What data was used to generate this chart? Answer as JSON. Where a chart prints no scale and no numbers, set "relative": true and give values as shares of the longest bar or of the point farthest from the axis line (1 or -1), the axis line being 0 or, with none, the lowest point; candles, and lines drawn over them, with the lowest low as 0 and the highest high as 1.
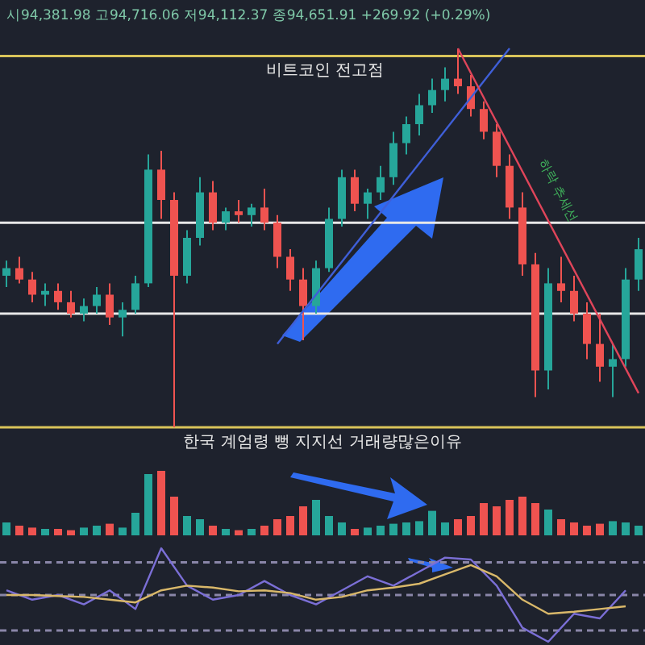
{
  "chart_data": [
    {
      "type": "candlestick",
      "relative": true,
      "categories": [
        null,
        null,
        null,
        null,
        null,
        null,
        null,
        null,
        null,
        null,
        null,
        null,
        null,
        null,
        null,
        null,
        null,
        null,
        null,
        null,
        null,
        null,
        null,
        null,
        null,
        null,
        null,
        null,
        null,
        null,
        null,
        null,
        null,
        null,
        null,
        null,
        null,
        null,
        null,
        null,
        null,
        null,
        null,
        null,
        null,
        null,
        null,
        null,
        null,
        null
      ],
      "ohlc": [
        [
          0.4,
          0.44,
          0.37,
          0.42
        ],
        [
          0.42,
          0.45,
          0.38,
          0.39
        ],
        [
          0.39,
          0.41,
          0.33,
          0.35
        ],
        [
          0.35,
          0.38,
          0.32,
          0.36
        ],
        [
          0.36,
          0.38,
          0.31,
          0.33
        ],
        [
          0.33,
          0.36,
          0.29,
          0.3
        ],
        [
          0.3,
          0.34,
          0.28,
          0.32
        ],
        [
          0.32,
          0.37,
          0.3,
          0.35
        ],
        [
          0.35,
          0.38,
          0.27,
          0.29
        ],
        [
          0.29,
          0.33,
          0.24,
          0.31
        ],
        [
          0.31,
          0.4,
          0.3,
          0.38
        ],
        [
          0.38,
          0.72,
          0.37,
          0.68
        ],
        [
          0.68,
          0.73,
          0.55,
          0.6
        ],
        [
          0.6,
          0.62,
          0.0,
          0.4
        ],
        [
          0.4,
          0.52,
          0.38,
          0.5
        ],
        [
          0.5,
          0.66,
          0.48,
          0.62
        ],
        [
          0.62,
          0.65,
          0.52,
          0.54
        ],
        [
          0.54,
          0.58,
          0.52,
          0.57
        ],
        [
          0.57,
          0.6,
          0.54,
          0.56
        ],
        [
          0.56,
          0.59,
          0.53,
          0.58
        ],
        [
          0.58,
          0.63,
          0.52,
          0.54
        ],
        [
          0.54,
          0.56,
          0.42,
          0.45
        ],
        [
          0.45,
          0.47,
          0.36,
          0.39
        ],
        [
          0.39,
          0.42,
          0.23,
          0.32
        ],
        [
          0.32,
          0.44,
          0.3,
          0.42
        ],
        [
          0.42,
          0.58,
          0.41,
          0.55
        ],
        [
          0.55,
          0.68,
          0.53,
          0.66
        ],
        [
          0.66,
          0.68,
          0.57,
          0.59
        ],
        [
          0.59,
          0.63,
          0.55,
          0.62
        ],
        [
          0.62,
          0.69,
          0.6,
          0.66
        ],
        [
          0.66,
          0.78,
          0.64,
          0.75
        ],
        [
          0.75,
          0.82,
          0.72,
          0.8
        ],
        [
          0.8,
          0.88,
          0.77,
          0.85
        ],
        [
          0.85,
          0.92,
          0.83,
          0.89
        ],
        [
          0.89,
          0.95,
          0.86,
          0.92
        ],
        [
          0.92,
          1.0,
          0.88,
          0.9
        ],
        [
          0.9,
          0.93,
          0.82,
          0.84
        ],
        [
          0.84,
          0.86,
          0.76,
          0.78
        ],
        [
          0.78,
          0.8,
          0.66,
          0.69
        ],
        [
          0.69,
          0.72,
          0.55,
          0.58
        ],
        [
          0.58,
          0.62,
          0.4,
          0.43
        ],
        [
          0.43,
          0.46,
          0.08,
          0.15
        ],
        [
          0.15,
          0.42,
          0.1,
          0.38
        ],
        [
          0.38,
          0.45,
          0.33,
          0.36
        ],
        [
          0.36,
          0.4,
          0.28,
          0.3
        ],
        [
          0.3,
          0.33,
          0.18,
          0.22
        ],
        [
          0.22,
          0.3,
          0.12,
          0.16
        ],
        [
          0.16,
          0.22,
          0.08,
          0.18
        ],
        [
          0.18,
          0.42,
          0.16,
          0.39
        ],
        [
          0.39,
          0.5,
          0.36,
          0.47
        ]
      ],
      "series": [
        {
          "type": "line",
          "color": "#3f5fd8",
          "values": [
            null,
            null,
            null,
            null,
            null,
            null,
            null,
            null,
            null,
            null,
            null,
            null,
            null,
            null,
            null,
            null,
            null,
            null,
            null,
            null,
            null,
            0.22,
            null,
            null,
            null,
            null,
            null,
            null,
            null,
            null,
            null,
            null,
            null,
            null,
            null,
            null,
            null,
            null,
            null,
            1.0,
            null,
            null,
            null,
            null,
            null,
            null,
            null,
            null,
            null,
            null
          ]
        },
        {
          "type": "line",
          "color": "#e0455a",
          "values": [
            null,
            null,
            null,
            null,
            null,
            null,
            null,
            null,
            null,
            null,
            null,
            null,
            null,
            null,
            null,
            null,
            null,
            null,
            null,
            null,
            null,
            null,
            null,
            null,
            null,
            null,
            null,
            null,
            null,
            null,
            null,
            null,
            null,
            null,
            null,
            1.0,
            null,
            null,
            null,
            null,
            null,
            null,
            null,
            null,
            null,
            null,
            null,
            null,
            null,
            0.09
          ]
        }
      ],
      "ref_lines": [
        {
          "axis": "y",
          "value": 0.98,
          "label": "비트코인 전고점",
          "color": "#d9c45a"
        },
        {
          "axis": "y",
          "value": 0.54,
          "color": "#e8e8e8"
        },
        {
          "axis": "y",
          "value": 0.3,
          "color": "#e8e8e8"
        },
        {
          "axis": "y",
          "value": 0.0,
          "label": "한국 계엄령 뻥 지지선 거래량많은이유",
          "color": "#d9c45a"
        }
      ],
      "annotations": [
        "시94,381.98 고94,716.06 저94,112.37 종94,651.91 +269.92 (+0.29%)",
        "하락 추세선"
      ]
    },
    {
      "type": "bar",
      "relative": true,
      "categories": [
        null,
        null,
        null,
        null,
        null,
        null,
        null,
        null,
        null,
        null,
        null,
        null,
        null,
        null,
        null,
        null,
        null,
        null,
        null,
        null,
        null,
        null,
        null,
        null,
        null,
        null,
        null,
        null,
        null,
        null,
        null,
        null,
        null,
        null,
        null,
        null,
        null,
        null,
        null,
        null,
        null,
        null,
        null,
        null,
        null,
        null,
        null,
        null,
        null,
        null
      ],
      "values": [
        0.2,
        0.15,
        0.12,
        0.1,
        0.1,
        0.08,
        0.12,
        0.15,
        0.18,
        0.12,
        0.35,
        0.95,
        1.0,
        0.6,
        0.3,
        0.25,
        0.15,
        0.1,
        0.08,
        0.1,
        0.15,
        0.25,
        0.3,
        0.45,
        0.55,
        0.3,
        0.2,
        0.1,
        0.12,
        0.15,
        0.18,
        0.2,
        0.22,
        0.38,
        0.2,
        0.25,
        0.3,
        0.5,
        0.45,
        0.55,
        0.6,
        0.5,
        0.4,
        0.25,
        0.2,
        0.15,
        0.18,
        0.22,
        0.2,
        0.15
      ],
      "colors": [
        "#26a69a",
        "#ef5350",
        "#ef5350",
        "#26a69a",
        "#ef5350",
        "#ef5350",
        "#26a69a",
        "#26a69a",
        "#ef5350",
        "#26a69a",
        "#26a69a",
        "#26a69a",
        "#ef5350",
        "#ef5350",
        "#26a69a",
        "#26a69a",
        "#ef5350",
        "#26a69a",
        "#ef5350",
        "#26a69a",
        "#ef5350",
        "#ef5350",
        "#ef5350",
        "#ef5350",
        "#26a69a",
        "#26a69a",
        "#26a69a",
        "#ef5350",
        "#26a69a",
        "#26a69a",
        "#26a69a",
        "#26a69a",
        "#26a69a",
        "#26a69a",
        "#26a69a",
        "#ef5350",
        "#ef5350",
        "#ef5350",
        "#ef5350",
        "#ef5350",
        "#ef5350",
        "#ef5350",
        "#26a69a",
        "#ef5350",
        "#ef5350",
        "#ef5350",
        "#ef5350",
        "#26a69a",
        "#26a69a",
        "#26a69a"
      ]
    },
    {
      "type": "line",
      "relative": true,
      "categories": [
        null,
        null,
        null,
        null,
        null,
        null,
        null,
        null,
        null,
        null,
        null,
        null,
        null,
        null,
        null,
        null,
        null,
        null,
        null,
        null,
        null,
        null,
        null,
        null,
        null
      ],
      "series": [
        {
          "color": "#7b6fd6",
          "values": [
            0.55,
            0.45,
            0.5,
            0.4,
            0.55,
            0.35,
            1.0,
            0.6,
            0.45,
            0.5,
            0.65,
            0.5,
            0.4,
            0.55,
            0.7,
            0.6,
            0.75,
            0.9,
            0.88,
            0.6,
            0.15,
            0.0,
            0.3,
            0.25,
            0.55
          ]
        },
        {
          "color": "#d9b86a",
          "values": [
            0.5,
            0.5,
            0.49,
            0.48,
            0.45,
            0.42,
            0.55,
            0.6,
            0.58,
            0.54,
            0.55,
            0.52,
            0.45,
            0.48,
            0.55,
            0.58,
            0.62,
            0.72,
            0.82,
            0.7,
            0.45,
            0.3,
            0.32,
            0.35,
            0.38
          ]
        }
      ],
      "ref_lines": [
        {
          "axis": "y",
          "value": 0.85,
          "color": "#8a86a8",
          "line_style": "dashed"
        },
        {
          "axis": "y",
          "value": 0.5,
          "color": "#8a86a8",
          "line_style": "dashed"
        },
        {
          "axis": "y",
          "value": 0.12,
          "color": "#8a86a8",
          "line_style": "dashed"
        }
      ]
    }
  ]
}
